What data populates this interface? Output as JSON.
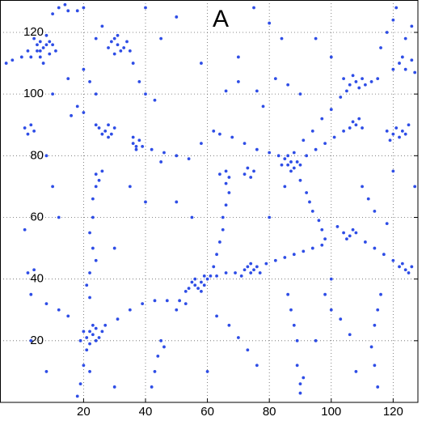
{
  "chart_data": {
    "type": "scatter",
    "annotation": "A",
    "color": "#2e4de6",
    "grid": true,
    "xlim": [
      -7,
      128
    ],
    "ylim": [
      0,
      130.5
    ],
    "xticks": [
      20,
      40,
      60,
      80,
      100,
      120
    ],
    "yticks": [
      20,
      40,
      60,
      80,
      100,
      120
    ],
    "x": [
      5,
      6,
      7,
      8,
      9,
      6,
      4,
      8,
      10,
      7,
      3,
      5,
      9,
      11,
      6,
      -3,
      0,
      2,
      -5,
      12,
      15,
      18,
      20,
      14,
      10,
      29,
      31,
      33,
      30,
      32,
      34,
      28,
      31,
      35,
      30,
      20,
      22,
      24,
      18,
      16,
      20,
      24,
      26,
      36,
      38,
      40,
      43,
      25,
      27,
      28,
      26,
      29,
      30,
      24,
      28,
      1,
      3,
      4,
      2,
      36,
      37,
      38,
      37,
      36,
      39,
      42,
      46,
      50,
      54,
      58,
      62,
      64,
      68,
      72,
      76,
      80,
      83,
      64,
      66,
      67,
      72,
      73,
      74,
      75,
      85,
      86,
      87,
      88,
      89,
      86,
      88,
      90,
      84,
      87,
      92,
      95,
      98,
      101,
      104,
      106,
      108,
      109,
      107,
      110,
      118,
      120,
      122,
      123,
      121,
      124,
      125,
      119,
      104,
      106,
      108,
      109,
      107,
      110,
      105,
      111,
      113,
      115,
      120,
      122,
      124,
      126,
      127,
      123,
      116,
      118,
      120,
      121,
      124,
      126,
      103,
      100,
      97,
      94,
      91,
      58,
      66,
      70,
      76,
      82,
      86,
      90,
      78,
      70,
      84,
      80,
      90,
      92,
      93,
      94,
      96,
      97,
      98,
      104,
      106,
      107,
      105,
      108,
      102,
      111,
      114,
      117,
      120,
      122,
      124,
      125,
      123,
      126,
      116,
      115,
      114,
      113,
      114,
      115,
      114,
      112,
      118,
      72,
      73,
      74,
      75,
      76,
      74,
      71,
      77,
      79,
      82,
      85,
      88,
      91,
      94,
      97,
      54,
      55,
      56,
      57,
      58,
      59,
      60,
      56,
      58,
      61,
      53,
      59,
      62,
      63,
      64,
      65,
      65,
      66,
      67,
      66,
      63,
      66,
      69,
      27,
      31,
      35,
      39,
      43,
      47,
      51,
      53,
      50,
      21,
      22,
      23,
      24,
      25,
      22,
      20,
      24,
      26,
      23,
      19,
      21,
      20,
      19,
      18,
      22,
      15,
      12,
      8,
      3,
      4,
      1,
      2,
      24,
      25,
      26,
      24,
      23,
      23,
      22,
      23,
      24,
      22,
      21,
      22,
      45,
      44,
      43,
      42,
      46,
      63,
      67,
      70,
      73,
      76,
      86,
      87,
      88,
      89,
      89,
      90,
      90,
      91,
      98,
      100,
      103,
      106,
      108,
      40,
      35,
      45,
      30,
      10,
      12,
      8,
      55,
      50,
      80,
      85,
      110,
      120,
      127,
      3,
      8,
      30,
      60,
      100,
      95,
      10,
      15,
      45,
      50,
      40,
      75,
      95,
      100
    ],
    "values": [
      114,
      117,
      115,
      116,
      113,
      112,
      118,
      119,
      116,
      110,
      112,
      116,
      117,
      114,
      114,
      111,
      112,
      114,
      110,
      128,
      127,
      127,
      128,
      129,
      126,
      117,
      116,
      115,
      118,
      114,
      117,
      115,
      119,
      114,
      113,
      108,
      104,
      100,
      96,
      93,
      94,
      118,
      122,
      110,
      104,
      100,
      98,
      89,
      88,
      90,
      87,
      87,
      89,
      90,
      86,
      89,
      90,
      88,
      87,
      84,
      83,
      85,
      82,
      86,
      83,
      82,
      81,
      80,
      79,
      84,
      88,
      87,
      86,
      84,
      82,
      81,
      80,
      74,
      75,
      73,
      74,
      76,
      73,
      75,
      79,
      77,
      78,
      76,
      78,
      80,
      81,
      77,
      77,
      75,
      80,
      82,
      84,
      86,
      88,
      89,
      90,
      92,
      91,
      89,
      88,
      87,
      86,
      88,
      89,
      87,
      90,
      85,
      105,
      103,
      104,
      102,
      106,
      105,
      101,
      103,
      104,
      105,
      108,
      110,
      108,
      111,
      107,
      112,
      115,
      120,
      124,
      128,
      118,
      122,
      99,
      95,
      92,
      88,
      85,
      110,
      101,
      104,
      101,
      105,
      103,
      100,
      96,
      112,
      118,
      123,
      72,
      68,
      65,
      62,
      59,
      56,
      53,
      55,
      54,
      56,
      53,
      55,
      57,
      52,
      50,
      48,
      46,
      44,
      43,
      42,
      45,
      44,
      35,
      30,
      25,
      18,
      12,
      5,
      62,
      66,
      58,
      43,
      44,
      42,
      43,
      44,
      45,
      41,
      42,
      45,
      46,
      47,
      48,
      49,
      50,
      51,
      37,
      39,
      38,
      37,
      39,
      38,
      40,
      40,
      36,
      41,
      36,
      41,
      44,
      48,
      52,
      56,
      60,
      64,
      68,
      71,
      41,
      42,
      42,
      25,
      27,
      30,
      32,
      33,
      33,
      33,
      32,
      30,
      21,
      23,
      22,
      24,
      21,
      19,
      23,
      20,
      23,
      25,
      20,
      17,
      12,
      6,
      2,
      10,
      28,
      30,
      32,
      35,
      43,
      56,
      42,
      74,
      72,
      75,
      70,
      66,
      60,
      55,
      50,
      46,
      42,
      38,
      34,
      20,
      15,
      10,
      5,
      18,
      28,
      25,
      21,
      17,
      12,
      35,
      30,
      25,
      20,
      12,
      6,
      3,
      8,
      35,
      30,
      27,
      22,
      10,
      65,
      70,
      78,
      50,
      70,
      60,
      80,
      60,
      65,
      60,
      70,
      70,
      75,
      70,
      20,
      10,
      5,
      10,
      40,
      20,
      100,
      105,
      118,
      125,
      128,
      128,
      118,
      112
    ]
  }
}
